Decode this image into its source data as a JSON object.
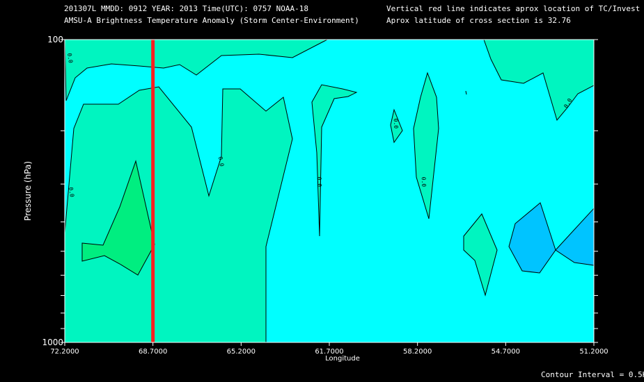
{
  "header": {
    "line1_left": "201307L  MMDD: 0912 YEAR: 2013 Time(UTC): 0757 NOAA-18",
    "line2_left": "AMSU-A Brightness Temperature Anomaly (Storm Center-Environment)",
    "line1_right": "Vertical red line indicates aprox location of TC/Invest",
    "line2_right": "Aprox latitude of cross section is 32.76"
  },
  "footer": {
    "contour_interval": "Contour Interval = 0.5K"
  },
  "colors": {
    "background": "#000000",
    "cyan": "#00ffff",
    "teal": "#00f5c0",
    "green_light": "#00f0a0",
    "green": "#00ee80",
    "blue": "#00c4ff",
    "storm_line": "#ff2020",
    "contour": "#000000"
  },
  "chart_data": {
    "type": "contour",
    "title": "AMSU-A Brightness Temperature Anomaly (Storm Center-Environment)",
    "xlabel": "Longitude",
    "ylabel": "Pressure (hPa)",
    "x_ticks": [
      "72.2000",
      "68.7000",
      "65.2000",
      "61.7000",
      "58.2000",
      "54.7000",
      "51.2000"
    ],
    "x_values": [
      72.2,
      68.7,
      65.2,
      61.7,
      58.2,
      54.7,
      51.2
    ],
    "xlim": [
      72.2,
      51.2
    ],
    "y_ticks": [
      "100",
      "1000"
    ],
    "ylim": [
      100,
      1000
    ],
    "y_scale": "log",
    "storm_longitude": 68.7,
    "contour_interval_k": 0.5,
    "contour_labels": [
      "0.0",
      "0.0",
      "0.0",
      "0.0",
      "0.0",
      "0.0",
      "0.0"
    ]
  }
}
